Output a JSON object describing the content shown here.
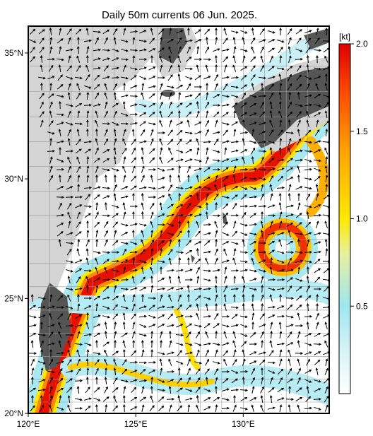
{
  "map": {
    "title": "Daily 50m currents 06 Jun. 2025.",
    "lat_labels": [
      {
        "value": 20,
        "label": "20°N"
      },
      {
        "value": 25,
        "label": "25°N"
      },
      {
        "value": 30,
        "label": "30°N"
      },
      {
        "value": 35,
        "label": "35°N"
      }
    ],
    "lon_labels": [
      {
        "value": 120,
        "label": "120°E"
      },
      {
        "value": 125,
        "label": "125°E"
      },
      {
        "value": 130,
        "label": "130°E"
      }
    ],
    "colorbar": {
      "unit": "[kt]",
      "range": [
        0,
        2
      ],
      "ticks": [
        0.5,
        {
          "value": 1,
          "label": "1.0"
        },
        1.5,
        {
          "value": 2,
          "label": "2.0"
        }
      ]
    }
  }
}
